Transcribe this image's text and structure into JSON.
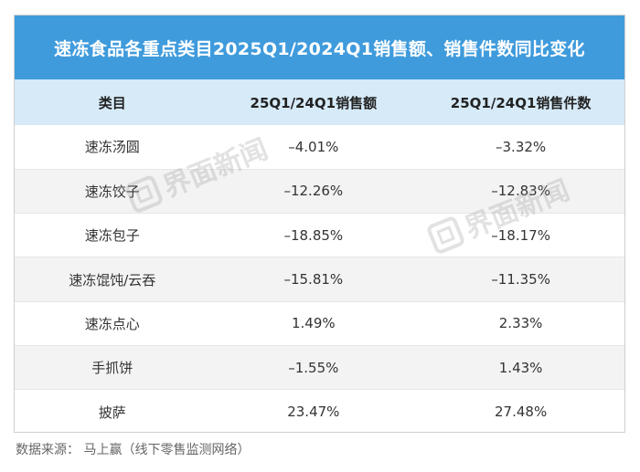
{
  "chart_data": {
    "type": "table",
    "title": "速冻食品各重点类目2025Q1/2024Q1销售额、销售件数同比变化",
    "columns": [
      "类目",
      "25Q1/24Q1销售额",
      "25Q1/24Q1销售件数"
    ],
    "rows": [
      [
        "速冻汤圆",
        "–4.01%",
        "–3.32%"
      ],
      [
        "速冻饺子",
        "–12.26%",
        "–12.83%"
      ],
      [
        "速冻包子",
        "–18.85%",
        "–18.17%"
      ],
      [
        "速冻馄饨/云吞",
        "–15.81%",
        "–11.35%"
      ],
      [
        "速冻点心",
        "1.49%",
        "2.33%"
      ],
      [
        "手抓饼",
        "–1.55%",
        "1.43%"
      ],
      [
        "披萨",
        "23.47%",
        "27.48%"
      ]
    ]
  },
  "watermark": {
    "text": "界面新闻"
  },
  "source": "数据来源： 马上赢（线下零售监测网络）",
  "colors": {
    "title_bg": "#3f9bdc",
    "header_bg": "#d6eaf8",
    "stripe": "#f3f3f3"
  }
}
